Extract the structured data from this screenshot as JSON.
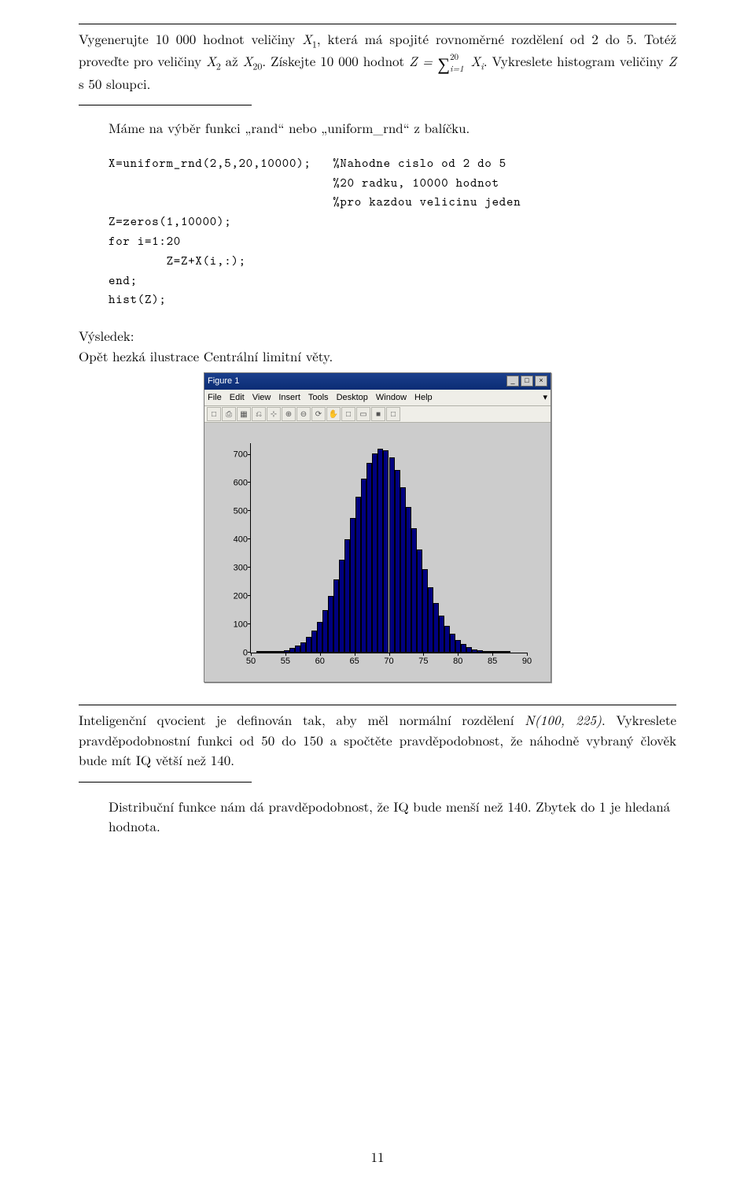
{
  "problem1": {
    "p1_a": "Vygenerujte 10 000 hodnot veličiny ",
    "p1_b": ", která má spojité rovnoměrné rozdělení od 2 do 5. Totéž proveďte pro veličiny ",
    "p1_c": " až ",
    "p1_d": ". Získejte 10 000 hodnot ",
    "p1_e": ". Vykreslete histogram veličiny ",
    "p1_f": " s 50 sloupci.",
    "var_X1": "X",
    "var_X1_sub": "1",
    "var_X2": "X",
    "var_X2_sub": "2",
    "var_X20": "X",
    "var_X20_sub": "20",
    "z_eq": "Z = ",
    "sum_sub": "i=1",
    "sum_sup": "20",
    "xi": "X",
    "xi_sub": "i",
    "z_var": "Z"
  },
  "answer1": "Máme na výběr funkci „rand“ nebo „uniform_rnd“ z balíčku.",
  "code": {
    "l1": "X=uniform_rnd(2,5,20,10000);   %Nahodne cislo od 2 do 5",
    "l2": "                               %20 radku, 10000 hodnot",
    "l3": "                               %pro kazdou velicinu jeden",
    "l4": "Z=zeros(1,10000);",
    "l5": "for i=1:20",
    "l6": "        Z=Z+X(i,:);",
    "l7": "end;",
    "l8": "hist(Z);"
  },
  "result_label": "Výsledek:",
  "result_text": "Opět hezká ilustrace Centrální limitní věty.",
  "figure": {
    "title": "Figure 1",
    "menus": [
      "File",
      "Edit",
      "View",
      "Insert",
      "Tools",
      "Desktop",
      "Window",
      "Help"
    ],
    "toolbar_icons": [
      "□",
      "⎙",
      "▦",
      "⎌",
      "⊹",
      "⊕",
      "⊖",
      "⟳",
      "✋",
      "□",
      "▭",
      "■",
      "□"
    ],
    "chart": {
      "type": "histogram",
      "y_ticks": [
        0,
        100,
        200,
        300,
        400,
        500,
        600,
        700
      ],
      "x_ticks": [
        50,
        55,
        60,
        65,
        70,
        75,
        80,
        85,
        90
      ],
      "y_max": 740,
      "x_min": 50,
      "x_max": 90,
      "bar_color": "#000080",
      "bar_edge": "#000000",
      "background": "#cccccc",
      "bar_edges": [
        50,
        50.8,
        51.6,
        52.4,
        53.2,
        54,
        54.8,
        55.6,
        56.4,
        57.2,
        58,
        58.8,
        59.6,
        60.4,
        61.2,
        62,
        62.8,
        63.6,
        64.4,
        65.2,
        66,
        66.8,
        67.6,
        68.4,
        69.2,
        70,
        70.8,
        71.6,
        72.4,
        73.2,
        74,
        74.8,
        75.6,
        76.4,
        77.2,
        78,
        78.8,
        79.6,
        80.4,
        81.2,
        82,
        82.8,
        83.6,
        84.4,
        85.2,
        86,
        86.8,
        87.6,
        88.4,
        89.2,
        90
      ],
      "bar_values": [
        0,
        1,
        2,
        3,
        5,
        7,
        10,
        16,
        25,
        38,
        55,
        78,
        110,
        150,
        200,
        260,
        330,
        400,
        475,
        550,
        615,
        670,
        705,
        720,
        715,
        690,
        645,
        585,
        515,
        440,
        365,
        295,
        230,
        175,
        130,
        94,
        66,
        45,
        30,
        19,
        12,
        8,
        5,
        3,
        2,
        1,
        1,
        0,
        0,
        0
      ]
    }
  },
  "problem2": {
    "a": "Inteligenční qvocient je definován tak, aby měl normální rozdělení ",
    "dist": "N(100, 225)",
    "b": ". Vykreslete pravděpodobnostní funkci od 50 do 150 a spočtěte pravděpodobnost, že náhodně vybraný člověk bude mít IQ větší než 140."
  },
  "answer2": "Distribuční funkce nám dá pravděpodobnost, že IQ bude menší než 140. Zbytek do 1 je hledaná hodnota.",
  "page_number": "11"
}
